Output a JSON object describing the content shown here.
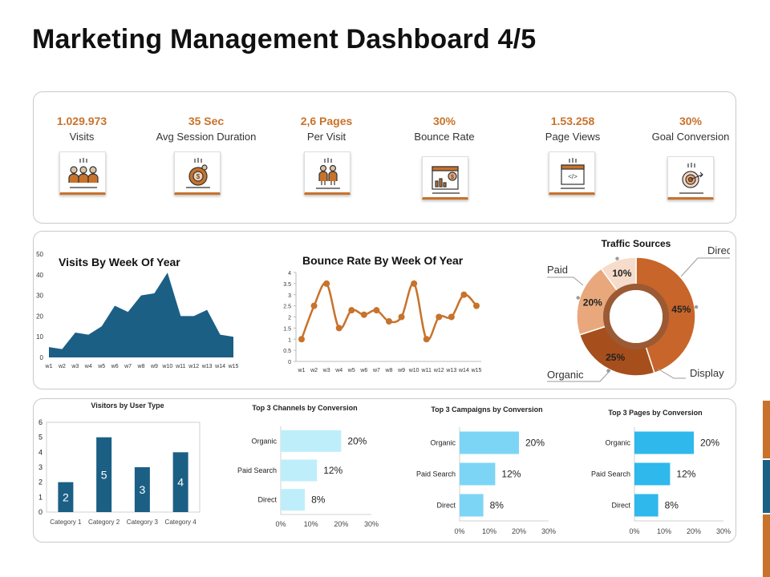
{
  "page": {
    "title": "Marketing Management Dashboard 4/5"
  },
  "kpis": [
    {
      "value": "1.029.973",
      "label": "Visits",
      "icon": "users-icon"
    },
    {
      "value": "35 Sec",
      "label": "Avg Session Duration",
      "icon": "stopwatch-dollar-icon"
    },
    {
      "value": "2,6 Pages",
      "label": "Per Visit",
      "icon": "two-people-icon"
    },
    {
      "value": "30%",
      "label": "Bounce Rate",
      "icon": "browser-chart-icon"
    },
    {
      "value": "1.53.258",
      "label": "Page Views",
      "icon": "code-page-icon"
    },
    {
      "value": "30%",
      "label": "Goal Conversion",
      "icon": "target-icon"
    }
  ],
  "colors": {
    "accent": "#c8722b",
    "navy": "#1b5f85",
    "areaFill": "#1b5f85",
    "bounceLine": "#c8722b"
  },
  "chart_data": [
    {
      "id": "visits",
      "type": "area",
      "title": "Visits By Week Of Year",
      "categories": [
        "w1",
        "w2",
        "w3",
        "w4",
        "w5",
        "w6",
        "w7",
        "w8",
        "w9",
        "w10",
        "w11",
        "w12",
        "w13",
        "w14",
        "w15"
      ],
      "values": [
        5,
        4,
        12,
        11,
        15,
        25,
        22,
        30,
        31,
        41,
        20,
        20,
        23,
        11,
        10
      ],
      "ylim": [
        0,
        50
      ],
      "yticks": [
        0,
        10,
        20,
        30,
        40,
        50
      ]
    },
    {
      "id": "bounce",
      "type": "line",
      "title": "Bounce Rate By Week Of Year",
      "categories": [
        "w1",
        "w2",
        "w3",
        "w4",
        "w5",
        "w6",
        "w7",
        "w8",
        "w9",
        "w10",
        "w11",
        "w12",
        "w13",
        "w14",
        "w15"
      ],
      "values": [
        1,
        2.5,
        3.5,
        1.5,
        2.3,
        2.1,
        2.3,
        1.8,
        2,
        3.5,
        1,
        2,
        2,
        3,
        2.5
      ],
      "ylim": [
        0,
        4
      ],
      "yticks": [
        "0",
        "0.5",
        "1",
        "1.5",
        "2",
        "2.5",
        "3",
        "3.5",
        "4"
      ]
    },
    {
      "id": "traffic",
      "type": "pie",
      "title": "Traffic Sources",
      "slices": [
        {
          "name": "Direct",
          "value": 45,
          "label": "45%",
          "color": "#c8652a"
        },
        {
          "name": "Display",
          "value": 25,
          "label": "25%",
          "color": "#a64f1c"
        },
        {
          "name": "Organic",
          "value": 20,
          "label": "20%",
          "color": "#e8a87c"
        },
        {
          "name": "Paid",
          "value": 10,
          "label": "10%",
          "color": "#f6dccb"
        }
      ]
    },
    {
      "id": "usertype",
      "type": "bar",
      "title": "Visitors by User Type",
      "categories": [
        "Category 1",
        "Category 2",
        "Category 3",
        "Category 4"
      ],
      "values": [
        2,
        5,
        3,
        4
      ],
      "labels": [
        "2",
        "5",
        "3",
        "4"
      ],
      "ylim": [
        0,
        6
      ],
      "yticks": [
        0,
        1,
        2,
        3,
        4,
        5,
        6
      ]
    },
    {
      "id": "channels",
      "type": "bar",
      "orientation": "horizontal",
      "title": "Top 3 Channels  by Conversion",
      "categories": [
        "Organic",
        "Paid Search",
        "Direct"
      ],
      "values": [
        20,
        12,
        8
      ],
      "labels": [
        "20%",
        "12%",
        "8%"
      ],
      "xlim": [
        0,
        30
      ],
      "xticks": [
        "0%",
        "10%",
        "20%",
        "30%"
      ],
      "color": "#bfeefb"
    },
    {
      "id": "campaigns",
      "type": "bar",
      "orientation": "horizontal",
      "title": "Top 3 Campaigns  by Conversion",
      "categories": [
        "Organic",
        "Paid Search",
        "Direct"
      ],
      "values": [
        20,
        12,
        8
      ],
      "labels": [
        "20%",
        "12%",
        "8%"
      ],
      "xlim": [
        0,
        30
      ],
      "xticks": [
        "0%",
        "10%",
        "20%",
        "30%"
      ],
      "color": "#7dd5f5"
    },
    {
      "id": "pages",
      "type": "bar",
      "orientation": "horizontal",
      "title": "Top 3 Pages by Conversion",
      "categories": [
        "Organic",
        "Paid Search",
        "Direct"
      ],
      "values": [
        20,
        12,
        8
      ],
      "labels": [
        "20%",
        "12%",
        "8%"
      ],
      "xlim": [
        0,
        30
      ],
      "xticks": [
        "0%",
        "10%",
        "20%",
        "30%"
      ],
      "color": "#2fb8ec"
    }
  ]
}
